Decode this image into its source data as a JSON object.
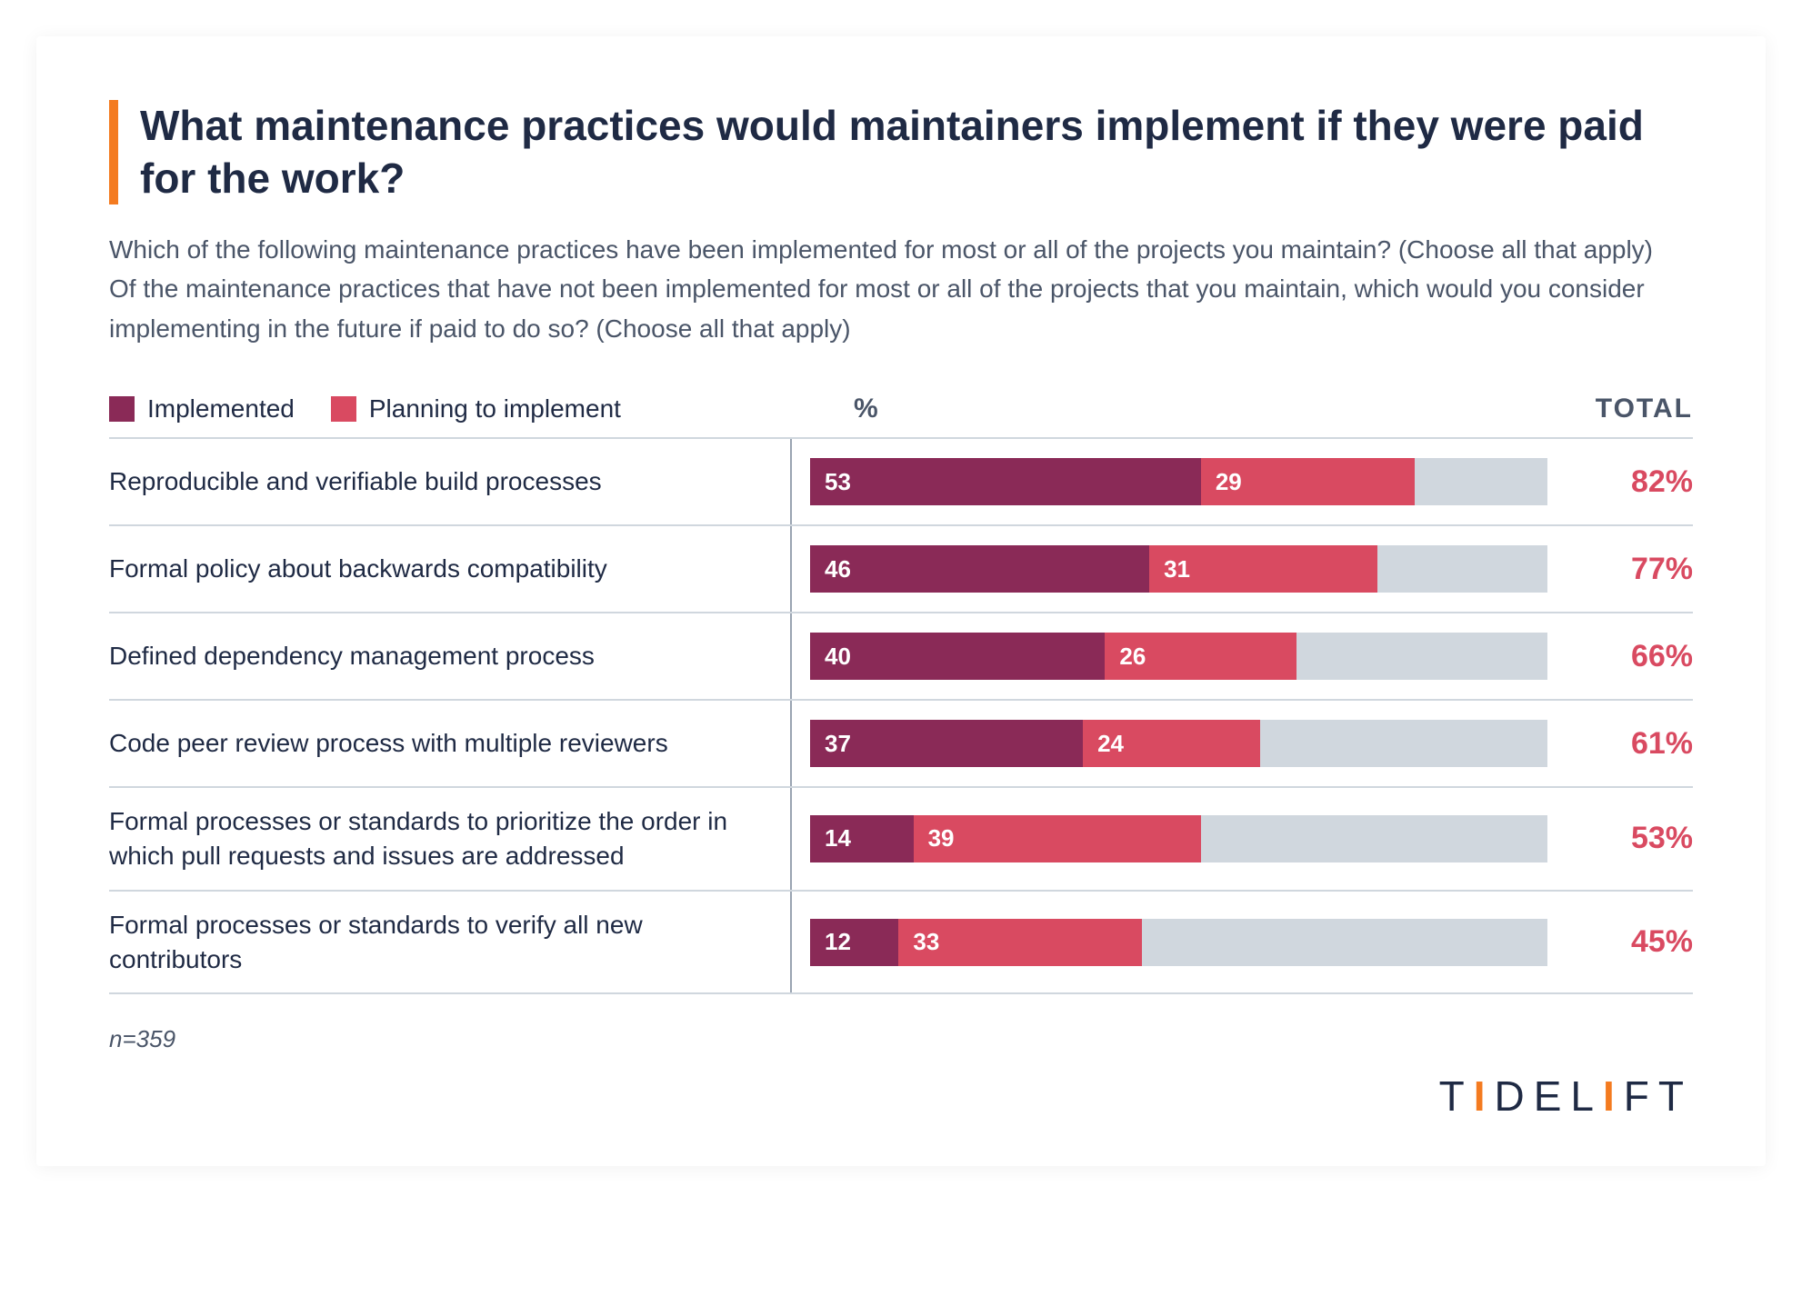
{
  "title": "What maintenance practices would maintainers implement if they were paid for the work?",
  "subtitle": "Which of the following maintenance practices have been implemented for most or all of the projects you maintain? (Choose all that apply) Of the maintenance practices that have not been implemented for most or all of the projects that you maintain, which would you consider implementing in the future if paid to do so? (Choose all that apply)",
  "legend": {
    "implemented": {
      "label": "Implemented",
      "color": "#8a2a57"
    },
    "planning": {
      "label": "Planning to implement",
      "color": "#d94a61"
    }
  },
  "headers": {
    "percent": "%",
    "total": "TOTAL"
  },
  "chart": {
    "type": "stacked-bar-horizontal",
    "xmax": 100,
    "track_color": "#d0d7de",
    "total_color": "#d94a61",
    "rows": [
      {
        "label": "Reproducible and verifiable build processes",
        "implemented": 53,
        "planning": 29,
        "total": "82%"
      },
      {
        "label": "Formal policy about backwards compatibility",
        "implemented": 46,
        "planning": 31,
        "total": "77%"
      },
      {
        "label": "Defined dependency management process",
        "implemented": 40,
        "planning": 26,
        "total": "66%"
      },
      {
        "label": "Code peer review process with multiple reviewers",
        "implemented": 37,
        "planning": 24,
        "total": "61%"
      },
      {
        "label": "Formal processes or standards to prioritize the order in which pull requests and issues are addressed",
        "implemented": 14,
        "planning": 39,
        "total": "53%"
      },
      {
        "label": "Formal processes or standards to verify all new contributors",
        "implemented": 12,
        "planning": 33,
        "total": "45%"
      }
    ]
  },
  "footnote": "n=359",
  "brand": "TIDELIFT",
  "colors": {
    "title": "#1f2a44",
    "subtitle": "#4a5568",
    "accent_bar": "#f47b20",
    "divider": "#d0d7de"
  }
}
